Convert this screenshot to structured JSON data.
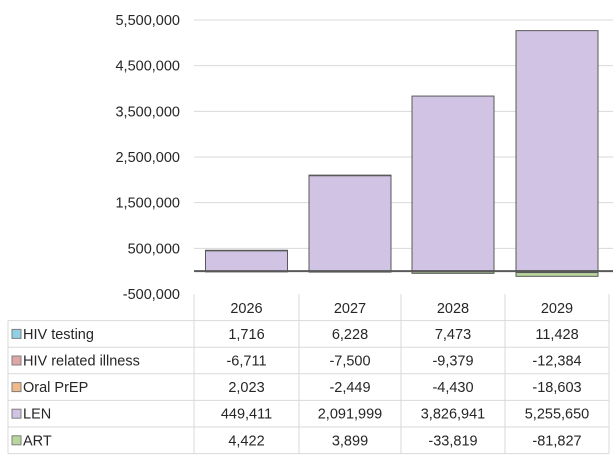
{
  "chart_data": {
    "type": "bar",
    "stacked": true,
    "categories": [
      "2026",
      "2027",
      "2028",
      "2029"
    ],
    "y_tick_labels": [
      "5,500,000",
      "4,500,000",
      "3,500,000",
      "2,500,000",
      "1,500,000",
      "500,000",
      "-500,000"
    ],
    "y_ticks": [
      5500000,
      4500000,
      3500000,
      2500000,
      1500000,
      500000,
      -500000
    ],
    "ylim": [
      -500000,
      5500000
    ],
    "grid": true,
    "legend_placement": "data-table-left",
    "series": [
      {
        "name": "HIV testing",
        "color": "#8fd0e6",
        "values": [
          1716,
          6228,
          7473,
          11428
        ],
        "labels": [
          "1,716",
          "6,228",
          "7,473",
          "11,428"
        ]
      },
      {
        "name": "HIV related illness",
        "color": "#e0a6a6",
        "values": [
          -6711,
          -7500,
          -9379,
          -12384
        ],
        "labels": [
          "-6,711",
          "-7,500",
          "-9,379",
          "-12,384"
        ]
      },
      {
        "name": "Oral PrEP",
        "color": "#f0b98a",
        "values": [
          2023,
          -2449,
          -4430,
          -18603
        ],
        "labels": [
          "2,023",
          "-2,449",
          "-4,430",
          "-18,603"
        ]
      },
      {
        "name": "LEN",
        "color": "#d0c3e3",
        "values": [
          449411,
          2091999,
          3826941,
          5255650
        ],
        "labels": [
          "449,411",
          "2,091,999",
          "3,826,941",
          "5,255,650"
        ]
      },
      {
        "name": "ART",
        "color": "#b9d79c",
        "values": [
          4422,
          3899,
          -33819,
          -81827
        ],
        "labels": [
          "4,422",
          "3,899",
          "-33,819",
          "-81,827"
        ]
      }
    ]
  }
}
